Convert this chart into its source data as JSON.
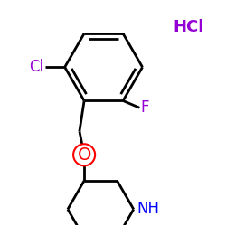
{
  "background_color": "#ffffff",
  "bond_color": "#000000",
  "bond_width": 2.0,
  "atom_colors": {
    "Cl": "#9400D3",
    "F": "#9400D3",
    "HCl": "#9400D3",
    "O": "#ff0000",
    "NH": "#0000ff"
  },
  "font_sizes": {
    "Cl": 12,
    "F": 12,
    "HCl": 13,
    "NH": 12,
    "O": 13
  },
  "figsize": [
    2.5,
    2.5
  ],
  "dpi": 100
}
